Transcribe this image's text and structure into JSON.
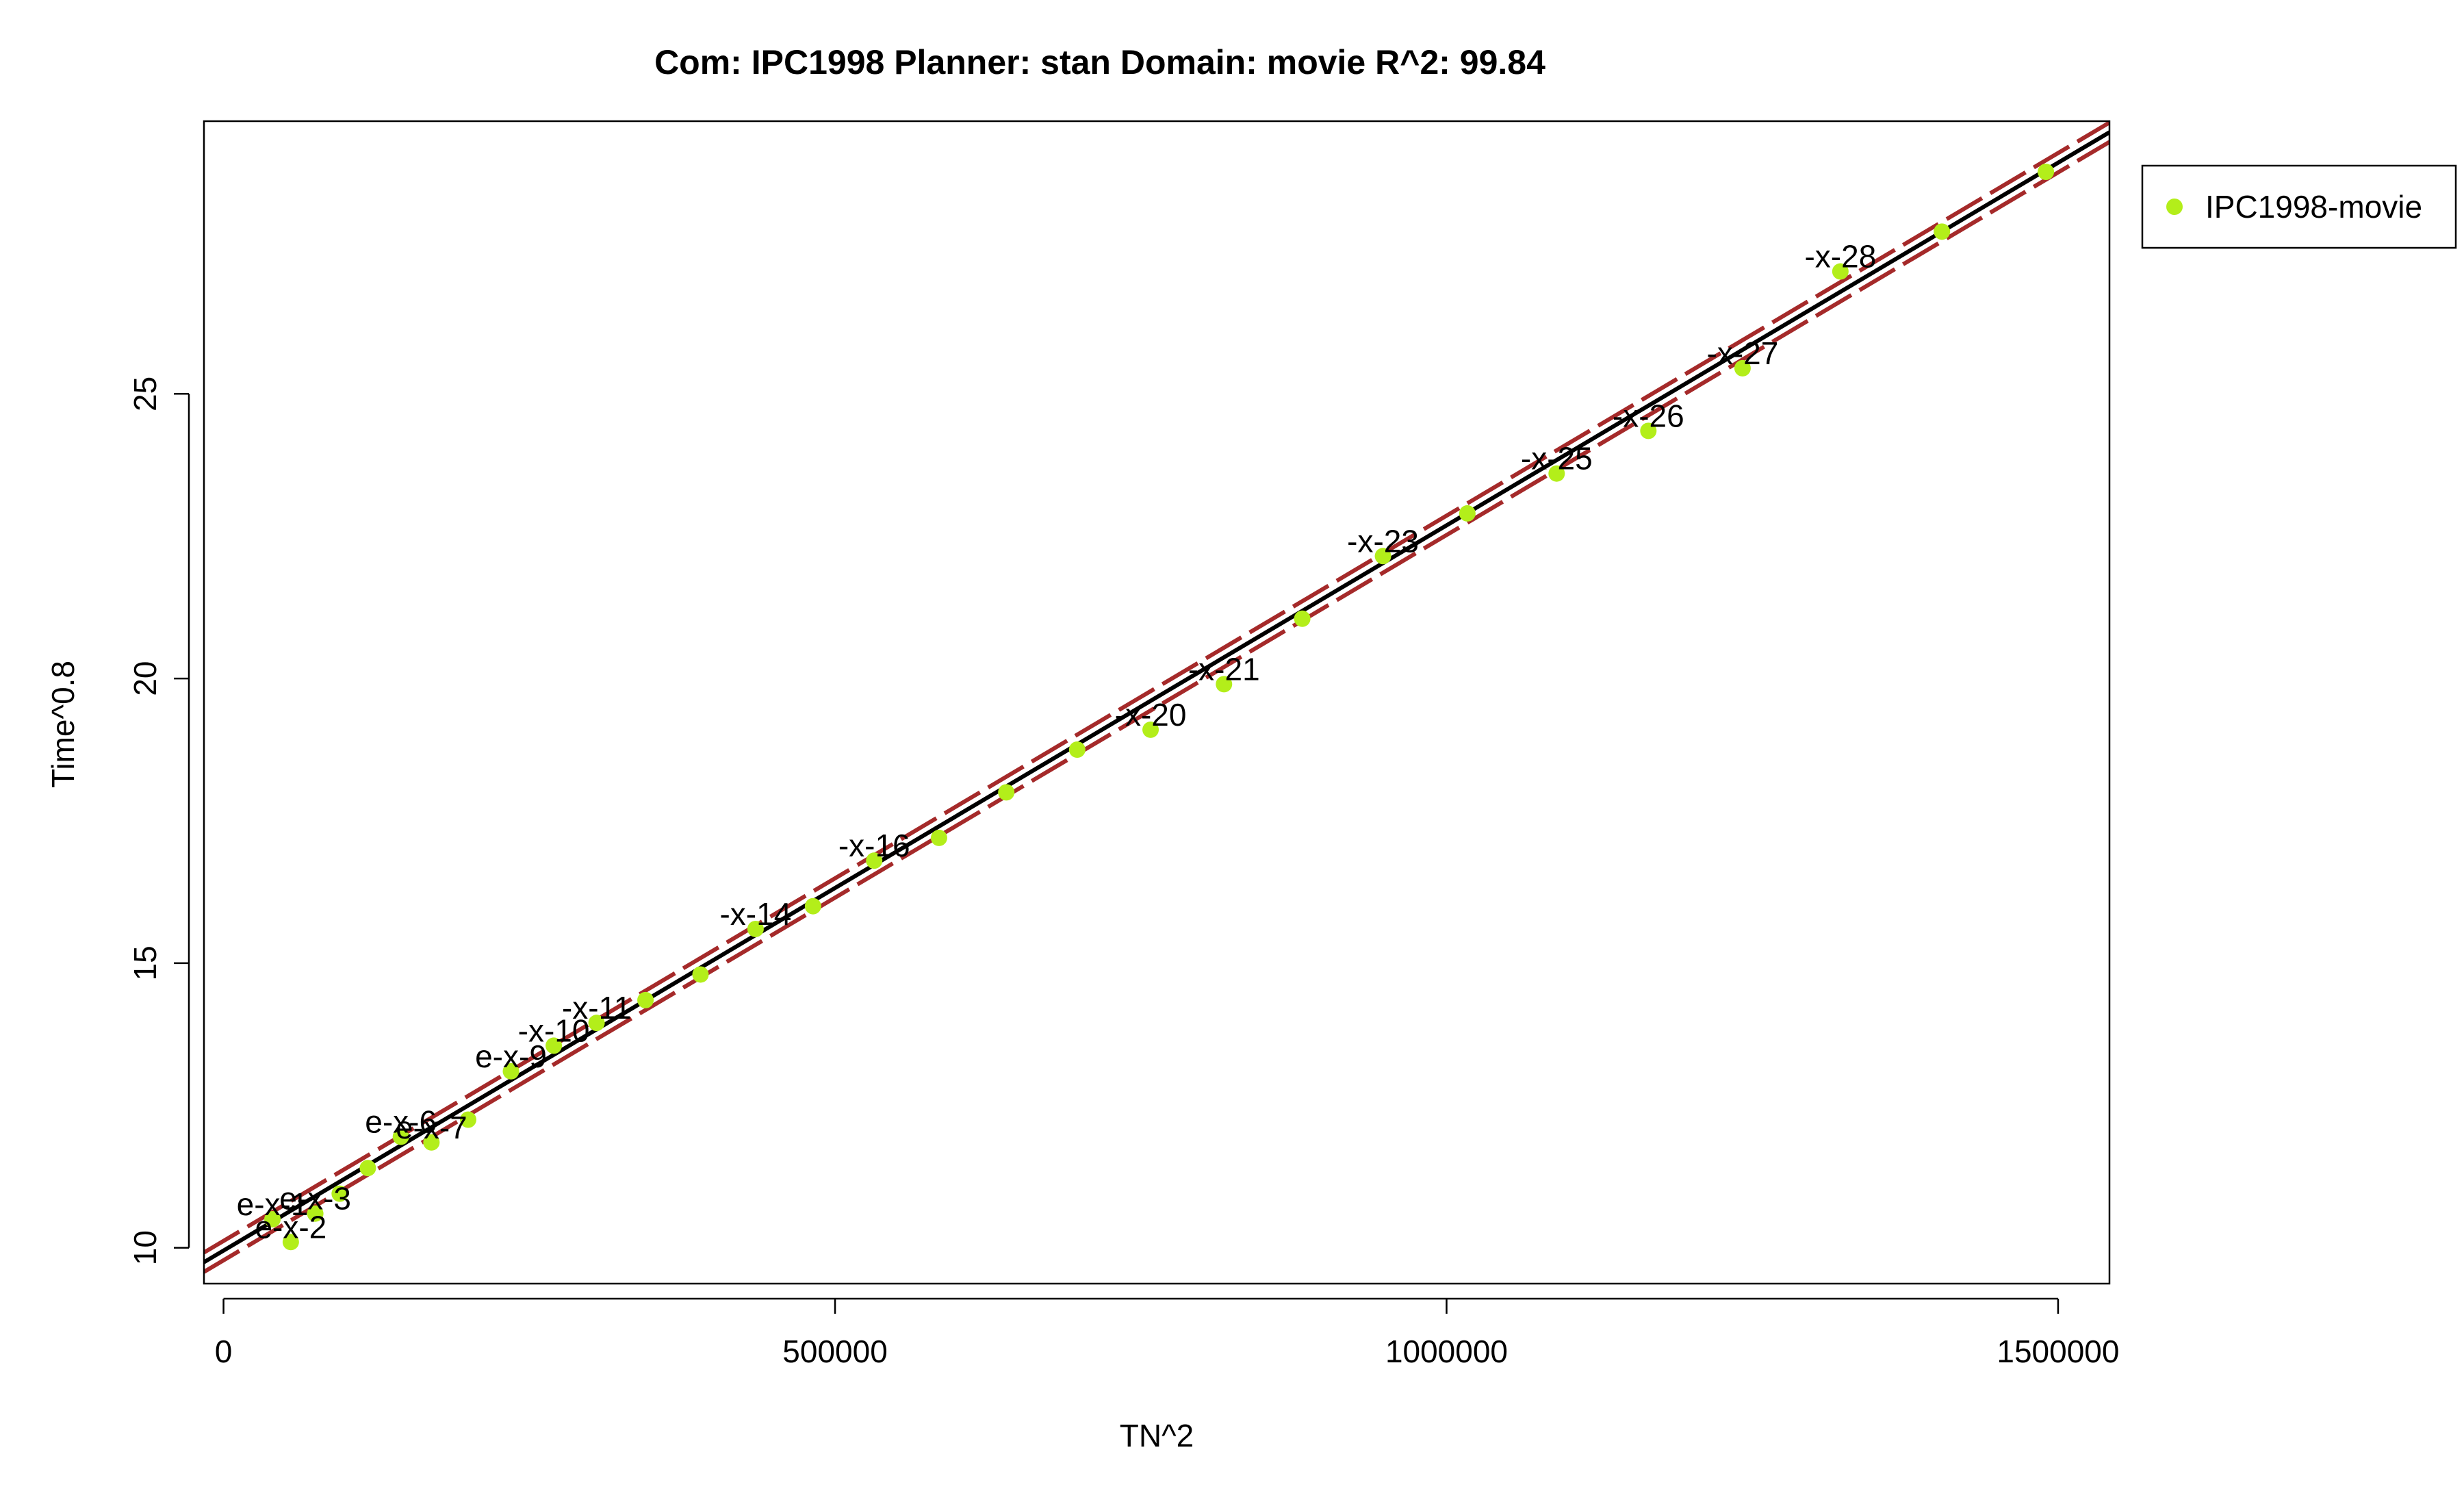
{
  "chart_data": {
    "type": "scatter",
    "title": "Com: IPC1998 Planner: stan Domain: movie R^2: 99.84",
    "xlabel": "TN^2",
    "ylabel": "Time^0.8",
    "xlim": [
      -16000,
      1542000
    ],
    "ylim": [
      9.37,
      29.79
    ],
    "x_ticks": [
      0,
      500000,
      1000000,
      1500000
    ],
    "x_tick_labels": [
      "0",
      "500000",
      "1000000",
      "1500000"
    ],
    "y_ticks": [
      10,
      15,
      20,
      25
    ],
    "y_tick_labels": [
      "10",
      "15",
      "20",
      "25"
    ],
    "grid": false,
    "legend": {
      "position": "top-right",
      "entries": [
        "IPC1998-movie"
      ]
    },
    "colors": {
      "points": "#b3ee1a",
      "fit": "#000000",
      "band": "#a52a2a"
    },
    "series": [
      {
        "name": "IPC1998-movie",
        "x": [
          40000,
          55000,
          75000,
          95000,
          118000,
          145000,
          170000,
          200000,
          235000,
          270000,
          305000,
          345000,
          390000,
          435000,
          482000,
          532000,
          585000,
          640000,
          698000,
          758000,
          818000,
          882000,
          948000,
          1017000,
          1090000,
          1165000,
          1242000,
          1322000,
          1405000,
          1490000
        ],
        "y": [
          10.5,
          10.1,
          10.6,
          10.95,
          11.4,
          11.95,
          11.85,
          12.25,
          13.1,
          13.55,
          13.95,
          14.35,
          14.8,
          15.6,
          16.0,
          16.8,
          17.2,
          18.0,
          18.75,
          19.1,
          19.9,
          21.05,
          22.15,
          22.9,
          23.6,
          24.35,
          25.45,
          27.15,
          27.85,
          28.9
        ],
        "labels": [
          "e-x-1",
          "e-x-2",
          "e-x-3",
          "",
          "",
          "e-x-6",
          "e-x-7",
          "",
          "e-x-9",
          "-x-10",
          "-x-11",
          "",
          "",
          "-x-14",
          "",
          "-x-16",
          "",
          "",
          "",
          "-x-20",
          "-x-21",
          "",
          "-x-23",
          "",
          "-x-25",
          "-x-26",
          "-x-27",
          "-x-28",
          "",
          ""
        ]
      }
    ],
    "fit": {
      "intercept": 9.95,
      "slope": 1.274e-05,
      "band": 0.17
    }
  }
}
